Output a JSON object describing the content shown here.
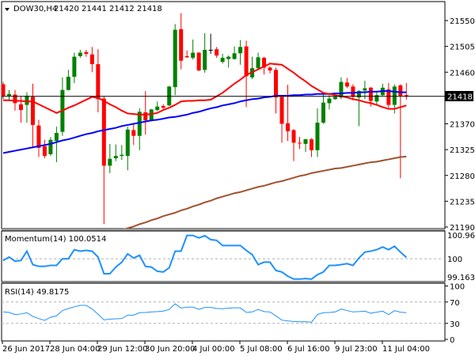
{
  "header": {
    "symbol": "DOW30,H4",
    "ohlc": "21420 21441 21412 21418"
  },
  "colors": {
    "bull": "#008000",
    "bear": "#ff0000",
    "doji": "#000000",
    "ma_fast": "#ff0000",
    "ma_mid": "#0000ff",
    "ma_slow": "#a0522d",
    "oscillator": "#1e90ff",
    "current_price_bg": "#000000"
  },
  "chart_data": [
    {
      "type": "candlestick",
      "title": "DOW30,H4  21420 21441 21412 21418",
      "x_ticks": [
        "26 Jun 2017",
        "28 Jun 04:00",
        "29 Jun 12:00",
        "30 Jun 20:00",
        "4 Jul 00:00",
        "5 Jul 08:00",
        "6 Jul 16:00",
        "9 Jul 23:00",
        "11 Jul 04:00"
      ],
      "y_ticks": [
        "21550",
        "21505",
        "21460",
        "21418",
        "21370",
        "21325",
        "21280",
        "21235",
        "21190"
      ],
      "ylim": [
        21190,
        21550
      ],
      "current_price": "21418",
      "candles": [
        [
          21439,
          21443,
          21413,
          21419
        ],
        [
          21419,
          21429,
          21411,
          21422
        ],
        [
          21421,
          21429,
          21393,
          21406
        ],
        [
          21404,
          21418,
          21372,
          21394
        ],
        [
          21403,
          21425,
          21372,
          21419
        ],
        [
          21417,
          21440,
          21328,
          21368
        ],
        [
          21367,
          21377,
          21312,
          21328
        ],
        [
          21331,
          21342,
          21310,
          21314
        ],
        [
          21317,
          21347,
          21314,
          21342
        ],
        [
          21340,
          21365,
          21303,
          21354
        ],
        [
          21356,
          21451,
          21349,
          21429
        ],
        [
          21429,
          21464,
          21428,
          21452
        ],
        [
          21452,
          21494,
          21441,
          21487
        ],
        [
          21488,
          21499,
          21485,
          21494
        ],
        [
          21495,
          21499,
          21487,
          21492
        ],
        [
          21491,
          21504,
          21460,
          21474
        ],
        [
          21474,
          21500,
          21390,
          21413
        ],
        [
          21414,
          21418,
          21195,
          21297
        ],
        [
          21297,
          21335,
          21284,
          21309
        ],
        [
          21310,
          21334,
          21305,
          21314
        ],
        [
          21314,
          21333,
          21307,
          21316
        ],
        [
          21314,
          21365,
          21289,
          21360
        ],
        [
          21359,
          21370,
          21333,
          21349
        ],
        [
          21349,
          21397,
          21324,
          21391
        ],
        [
          21390,
          21427,
          21351,
          21376
        ],
        [
          21376,
          21396,
          21374,
          21395
        ],
        [
          21394,
          21409,
          21392,
          21400
        ],
        [
          21401,
          21404,
          21396,
          21398
        ],
        [
          21402,
          21436,
          21401,
          21435
        ],
        [
          21434,
          21544,
          21420,
          21534
        ],
        [
          21535,
          21563,
          21465,
          21480
        ],
        [
          21488,
          21498,
          21485,
          21486
        ],
        [
          21485,
          21517,
          21482,
          21494
        ],
        [
          21494,
          21495,
          21462,
          21463
        ],
        [
          21464,
          21528,
          21459,
          21499
        ],
        [
          21499,
          21527,
          21492,
          21499
        ],
        [
          21500,
          21504,
          21485,
          21489
        ],
        [
          21478,
          21492,
          21475,
          21485
        ],
        [
          21483,
          21489,
          21468,
          21487
        ],
        [
          21483,
          21505,
          21482,
          21493
        ],
        [
          21493,
          21516,
          21473,
          21504
        ],
        [
          21505,
          21515,
          21399,
          21453
        ],
        [
          21451,
          21487,
          21448,
          21467
        ],
        [
          21467,
          21494,
          21465,
          21486
        ],
        [
          21485,
          21487,
          21456,
          21468
        ],
        [
          21468,
          21470,
          21458,
          21463
        ],
        [
          21464,
          21468,
          21388,
          21416
        ],
        [
          21417,
          21417,
          21337,
          21370
        ],
        [
          21371,
          21438,
          21340,
          21357
        ],
        [
          21359,
          21361,
          21305,
          21337
        ],
        [
          21337,
          21347,
          21326,
          21336
        ],
        [
          21335,
          21344,
          21321,
          21343
        ],
        [
          21343,
          21345,
          21312,
          21324
        ],
        [
          21324,
          21397,
          21312,
          21372
        ],
        [
          21372,
          21425,
          21370,
          21407
        ],
        [
          21406,
          21420,
          21395,
          21414
        ],
        [
          21413,
          21418,
          21412,
          21417
        ],
        [
          21416,
          21451,
          21413,
          21443
        ],
        [
          21442,
          21450,
          21432,
          21435
        ],
        [
          21435,
          21439,
          21411,
          21417
        ],
        [
          21416,
          21429,
          21366,
          21427
        ],
        [
          21428,
          21445,
          21413,
          21432
        ],
        [
          21433,
          21434,
          21400,
          21410
        ],
        [
          21409,
          21427,
          21404,
          21420
        ],
        [
          21420,
          21440,
          21419,
          21433
        ],
        [
          21430,
          21441,
          21398,
          21403
        ],
        [
          21403,
          21439,
          21388,
          21435
        ],
        [
          21437,
          21439,
          21275,
          21419
        ],
        [
          21420,
          21441,
          21412,
          21418
        ]
      ],
      "ma_fast": [
        21411,
        21411,
        21410,
        21410,
        21409,
        21409,
        21404,
        21399,
        21394,
        21389,
        21393,
        21398,
        21402,
        21407,
        21412,
        21417,
        21415,
        21410,
        21404,
        21399,
        21393,
        21388,
        21387,
        21386,
        21386,
        21387,
        21389,
        21394,
        21398,
        21403,
        21409,
        21410,
        21410,
        21411,
        21411,
        21412,
        21418,
        21424,
        21432,
        21440,
        21447,
        21455,
        21460,
        21465,
        21470,
        21475,
        21474,
        21473,
        21466,
        21459,
        21451,
        21444,
        21436,
        21430,
        21424,
        21422,
        21420,
        21418,
        21416,
        21413,
        21411,
        21408,
        21406,
        21403,
        21399,
        21396,
        21396,
        21399,
        21402
      ],
      "ma_mid": [
        21319,
        21321,
        21323,
        21325,
        21327,
        21329,
        21331,
        21333,
        21335,
        21338,
        21341,
        21343,
        21346,
        21349,
        21352,
        21354,
        21357,
        21359,
        21361,
        21363,
        21366,
        21368,
        21370,
        21372,
        21374,
        21376,
        21377,
        21379,
        21381,
        21382,
        21384,
        21386,
        21389,
        21391,
        21394,
        21397,
        21399,
        21402,
        21404,
        21406,
        21409,
        21411,
        21413,
        21414,
        21416,
        21417,
        21419,
        21419,
        21419,
        21420,
        21420,
        21421,
        21421,
        21422,
        21422,
        21422,
        21423,
        21423,
        21424,
        21424,
        21425,
        21425,
        21426,
        21426,
        21427,
        21427,
        21426,
        21425,
        21425
      ],
      "ma_slow": [
        null,
        null,
        null,
        null,
        null,
        null,
        null,
        null,
        null,
        null,
        null,
        null,
        null,
        null,
        null,
        null,
        null,
        null,
        null,
        null,
        21185,
        21188,
        21191,
        21195,
        21198,
        21202,
        21205,
        21209,
        21212,
        21215,
        21219,
        21222,
        21226,
        21229,
        21233,
        21236,
        21240,
        21243,
        21246,
        21249,
        21251,
        21254,
        21257,
        21260,
        21262,
        21265,
        21268,
        21270,
        21273,
        21276,
        21279,
        21281,
        21284,
        21286,
        21288,
        21290,
        21292,
        21293,
        21295,
        21297,
        21299,
        21301,
        21303,
        21304,
        21306,
        21308,
        21310,
        21312,
        21313
      ]
    },
    {
      "type": "line",
      "title": "Momentum(14) 100.0514",
      "y_ticks": [
        "100.9695",
        "100",
        "99.1639"
      ],
      "ylim": [
        99.1639,
        100.9695
      ],
      "level": 100,
      "values": [
        99.93,
        100.07,
        99.9,
        99.93,
        100.31,
        99.76,
        99.69,
        99.69,
        99.73,
        99.73,
        100.0,
        100.0,
        100.37,
        100.31,
        100.34,
        100.31,
        100.07,
        99.39,
        99.39,
        99.66,
        99.86,
        100.2,
        100.03,
        100.14,
        99.69,
        99.66,
        99.49,
        99.46,
        99.63,
        100.31,
        100.31,
        100.95,
        100.95,
        100.85,
        100.94,
        100.78,
        100.75,
        100.54,
        100.54,
        100.54,
        100.54,
        100.34,
        100.17,
        99.76,
        99.86,
        99.86,
        99.52,
        99.46,
        99.29,
        99.17,
        99.17,
        99.19,
        99.17,
        99.35,
        99.46,
        99.73,
        99.73,
        99.76,
        99.8,
        99.73,
        100.03,
        100.27,
        100.31,
        100.37,
        100.48,
        100.37,
        100.51,
        100.27,
        100.0514
      ]
    },
    {
      "type": "line",
      "title": "RSI(14) 49.8175",
      "y_ticks": [
        "100",
        "70",
        "30",
        "0"
      ],
      "ylim": [
        0,
        100
      ],
      "levels": [
        70,
        30
      ],
      "values": [
        51.5,
        50.5,
        46.5,
        47.5,
        50,
        43,
        39,
        35.6,
        41.5,
        44,
        54,
        57.8,
        61,
        63.7,
        63.7,
        57,
        47,
        36.5,
        38,
        38.5,
        39,
        45.4,
        45.4,
        50,
        50.4,
        51.4,
        52,
        52.9,
        56,
        66.7,
        58.8,
        60.3,
        60.3,
        56.3,
        59.8,
        59.8,
        58,
        57.5,
        58.5,
        59,
        59,
        50.5,
        51.4,
        56,
        52,
        51.4,
        44,
        36,
        34.6,
        33.5,
        33,
        33.1,
        32.1,
        46.5,
        50,
        50.4,
        51.5,
        56.8,
        54,
        51.4,
        52,
        52.9,
        49,
        51,
        52.9,
        46.4,
        53.8,
        51,
        49.8175
      ]
    }
  ]
}
